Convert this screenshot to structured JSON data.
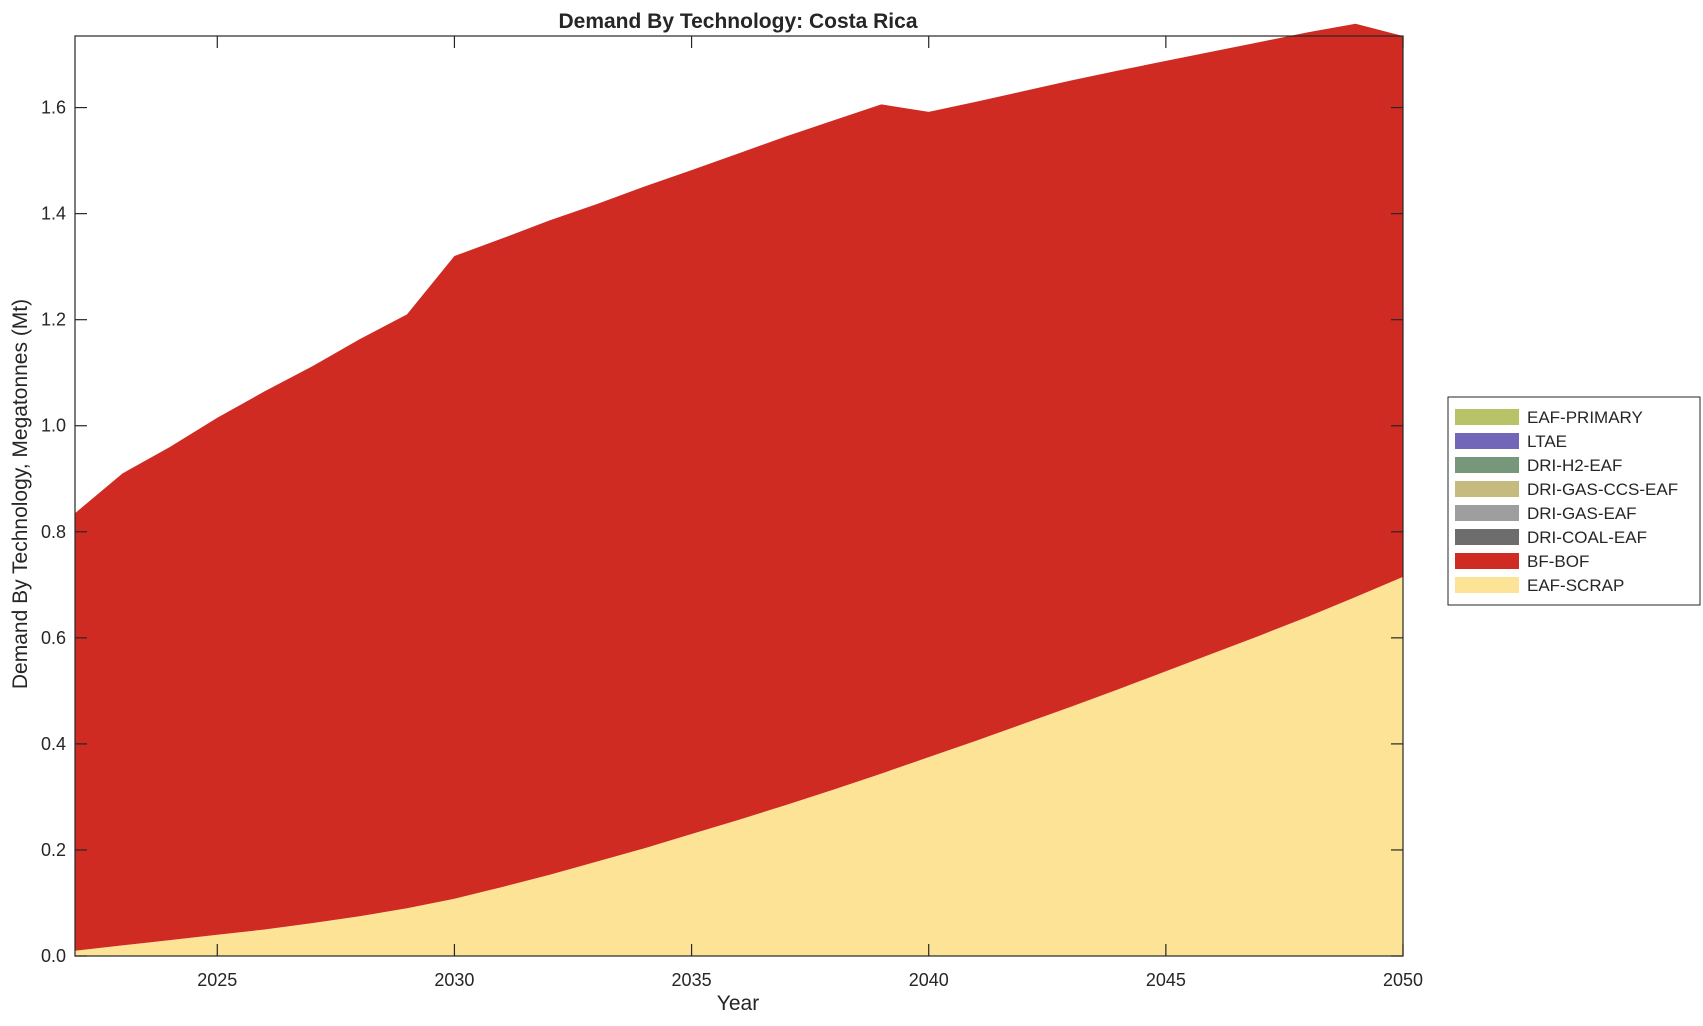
{
  "chart_data": {
    "type": "area",
    "stacked": true,
    "title": "Demand By Technology: Costa Rica",
    "xlabel": "Year",
    "ylabel": "Demand By Technology, Megatonnes (Mt)",
    "xlim": [
      2022,
      2050
    ],
    "ylim": [
      0,
      1.735
    ],
    "xticks": [
      2025,
      2030,
      2035,
      2040,
      2045,
      2050
    ],
    "yticks": [
      0,
      0.2,
      0.4,
      0.6,
      0.8,
      1.0,
      1.2,
      1.4,
      1.6
    ],
    "ytick_labels": [
      "0.0",
      "0.2",
      "0.4",
      "0.6",
      "0.8",
      "1.0",
      "1.2",
      "1.4",
      "1.6"
    ],
    "grid": false,
    "legend_position": "right",
    "x": [
      2022,
      2023,
      2024,
      2025,
      2026,
      2027,
      2028,
      2029,
      2030,
      2031,
      2032,
      2033,
      2034,
      2035,
      2036,
      2037,
      2038,
      2039,
      2040,
      2041,
      2042,
      2043,
      2044,
      2045,
      2046,
      2047,
      2048,
      2049,
      2050
    ],
    "series": [
      {
        "name": "EAF-SCRAP",
        "color": "#fde395",
        "values": [
          0.01,
          0.02,
          0.03,
          0.04,
          0.05,
          0.062,
          0.075,
          0.09,
          0.108,
          0.13,
          0.153,
          0.178,
          0.203,
          0.23,
          0.257,
          0.285,
          0.314,
          0.344,
          0.375,
          0.406,
          0.438,
          0.47,
          0.503,
          0.537,
          0.571,
          0.605,
          0.64,
          0.677,
          0.715
        ]
      },
      {
        "name": "BF-BOF",
        "color": "#d02b23",
        "values": [
          0.825,
          0.89,
          0.93,
          0.975,
          1.015,
          1.05,
          1.088,
          1.12,
          1.212,
          1.223,
          1.234,
          1.24,
          1.248,
          1.252,
          1.257,
          1.261,
          1.262,
          1.262,
          1.217,
          1.205,
          1.193,
          1.181,
          1.167,
          1.151,
          1.135,
          1.119,
          1.102,
          1.081,
          1.02
        ]
      },
      {
        "name": "DRI-COAL-EAF",
        "color": "#6d6d6d",
        "values": [
          0,
          0,
          0,
          0,
          0,
          0,
          0,
          0,
          0,
          0,
          0,
          0,
          0,
          0,
          0,
          0,
          0,
          0,
          0,
          0,
          0,
          0,
          0,
          0,
          0,
          0,
          0,
          0,
          0
        ]
      },
      {
        "name": "DRI-GAS-EAF",
        "color": "#9e9e9e",
        "values": [
          0,
          0,
          0,
          0,
          0,
          0,
          0,
          0,
          0,
          0,
          0,
          0,
          0,
          0,
          0,
          0,
          0,
          0,
          0,
          0,
          0,
          0,
          0,
          0,
          0,
          0,
          0,
          0,
          0
        ]
      },
      {
        "name": "DRI-GAS-CCS-EAF",
        "color": "#c5bb7e",
        "values": [
          0,
          0,
          0,
          0,
          0,
          0,
          0,
          0,
          0,
          0,
          0,
          0,
          0,
          0,
          0,
          0,
          0,
          0,
          0,
          0,
          0,
          0,
          0,
          0,
          0,
          0,
          0,
          0,
          0
        ]
      },
      {
        "name": "DRI-H2-EAF",
        "color": "#76977a",
        "values": [
          0,
          0,
          0,
          0,
          0,
          0,
          0,
          0,
          0,
          0,
          0,
          0,
          0,
          0,
          0,
          0,
          0,
          0,
          0,
          0,
          0,
          0,
          0,
          0,
          0,
          0,
          0,
          0,
          0
        ]
      },
      {
        "name": "LTAE",
        "color": "#7266b8",
        "values": [
          0,
          0,
          0,
          0,
          0,
          0,
          0,
          0,
          0,
          0,
          0,
          0,
          0,
          0,
          0,
          0,
          0,
          0,
          0,
          0,
          0,
          0,
          0,
          0,
          0,
          0,
          0,
          0,
          0
        ]
      },
      {
        "name": "EAF-PRIMARY",
        "color": "#b8c267",
        "values": [
          0,
          0,
          0,
          0,
          0,
          0,
          0,
          0,
          0,
          0,
          0,
          0,
          0,
          0,
          0,
          0,
          0,
          0,
          0,
          0,
          0,
          0,
          0,
          0,
          0,
          0,
          0,
          0,
          0
        ]
      }
    ],
    "legend_order": [
      "EAF-PRIMARY",
      "LTAE",
      "DRI-H2-EAF",
      "DRI-GAS-CCS-EAF",
      "DRI-GAS-EAF",
      "DRI-COAL-EAF",
      "BF-BOF",
      "EAF-SCRAP"
    ]
  }
}
